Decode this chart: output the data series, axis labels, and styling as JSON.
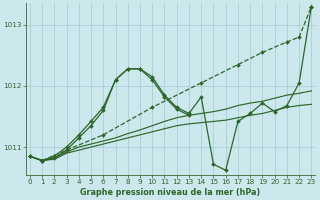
{
  "title": "Graphe pression niveau de la mer (hPa)",
  "bg_color": "#cce8ec",
  "grid_color": "#aad4d8",
  "line_color": "#2d6629",
  "xlim": [
    -0.3,
    23.3
  ],
  "ylim": [
    1010.55,
    1013.35
  ],
  "yticks": [
    1011,
    1012,
    1013
  ],
  "xticks": [
    0,
    1,
    2,
    3,
    4,
    5,
    6,
    7,
    8,
    9,
    10,
    11,
    12,
    13,
    14,
    15,
    16,
    17,
    18,
    19,
    20,
    21,
    22,
    23
  ],
  "series": [
    {
      "x": [
        0,
        1,
        3,
        6,
        10,
        14,
        17,
        19,
        21,
        22,
        23
      ],
      "y": [
        1010.85,
        1010.78,
        1010.95,
        1011.2,
        1011.65,
        1012.05,
        1012.35,
        1012.55,
        1012.72,
        1012.8,
        1013.3
      ],
      "linestyle": "--",
      "marker": true
    },
    {
      "x": [
        0,
        1,
        2,
        3,
        4,
        5,
        6,
        7,
        8,
        9,
        10,
        11,
        12,
        13,
        14,
        15,
        16,
        17,
        18,
        19,
        20,
        21,
        22,
        23
      ],
      "y": [
        1010.85,
        1010.78,
        1010.8,
        1010.9,
        1010.95,
        1011.0,
        1011.05,
        1011.1,
        1011.15,
        1011.2,
        1011.25,
        1011.3,
        1011.35,
        1011.38,
        1011.4,
        1011.42,
        1011.44,
        1011.48,
        1011.52,
        1011.55,
        1011.6,
        1011.65,
        1011.68,
        1011.7
      ],
      "linestyle": "-",
      "marker": false
    },
    {
      "x": [
        0,
        1,
        2,
        3,
        4,
        5,
        6,
        7,
        8,
        9,
        10,
        11,
        12,
        13,
        14,
        15,
        16,
        17,
        18,
        19,
        20,
        21,
        22,
        23
      ],
      "y": [
        1010.85,
        1010.78,
        1010.82,
        1010.92,
        1011.0,
        1011.05,
        1011.1,
        1011.15,
        1011.22,
        1011.28,
        1011.35,
        1011.42,
        1011.48,
        1011.52,
        1011.55,
        1011.58,
        1011.62,
        1011.68,
        1011.72,
        1011.75,
        1011.8,
        1011.85,
        1011.88,
        1011.92
      ],
      "linestyle": "-",
      "marker": false
    },
    {
      "x": [
        0,
        1,
        2,
        3,
        4,
        5,
        6,
        7,
        8,
        9,
        10,
        11,
        12,
        13,
        14,
        15,
        16,
        17,
        18,
        19,
        20,
        21,
        22,
        23
      ],
      "y": [
        1010.85,
        1010.78,
        1010.82,
        1010.95,
        1011.15,
        1011.35,
        1011.6,
        1012.1,
        1012.28,
        1012.28,
        1012.15,
        1011.85,
        1011.65,
        1011.55,
        1011.82,
        1010.72,
        1010.62,
        1011.42,
        1011.55,
        1011.72,
        1011.58,
        1011.68,
        1012.05,
        1013.3
      ],
      "linestyle": "-",
      "marker": true
    },
    {
      "x": [
        0,
        1,
        2,
        3,
        4,
        5,
        6,
        7,
        8,
        9,
        10,
        11,
        12,
        13
      ],
      "y": [
        1010.85,
        1010.78,
        1010.85,
        1011.0,
        1011.2,
        1011.42,
        1011.65,
        1012.1,
        1012.28,
        1012.28,
        1012.1,
        1011.82,
        1011.62,
        1011.52
      ],
      "linestyle": "-",
      "marker": true
    }
  ]
}
